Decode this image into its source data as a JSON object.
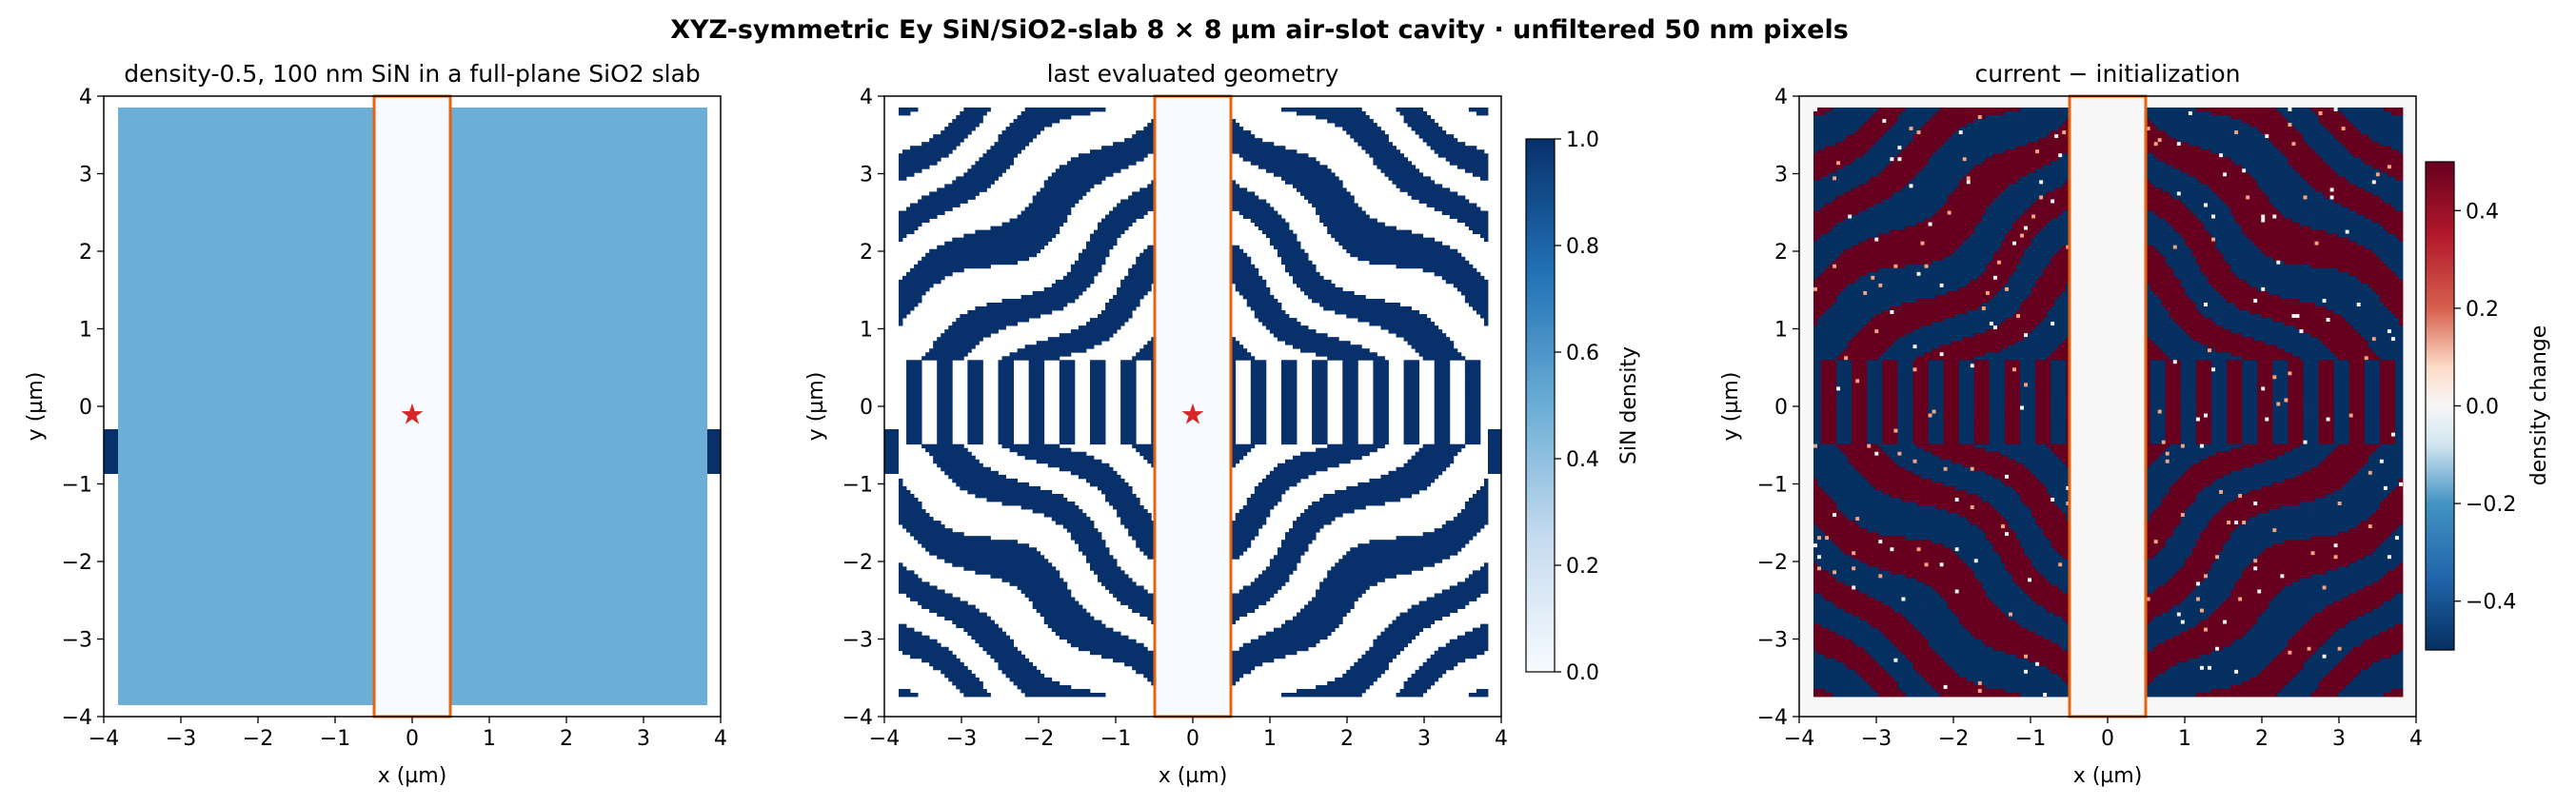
{
  "suptitle": "XYZ-symmetric Ey SiN/SiO2-slab 8 × 8 µm air-slot cavity · unfiltered 50 nm pixels",
  "colors": {
    "sio2_fill": "#6baed6",
    "sin_full": "#08306b",
    "sin_empty": "#f7fbff",
    "slot_outline": "#e6640f",
    "source_star": "#d62728",
    "diff_pos": "#67001f",
    "diff_neg": "#053061",
    "diff_zero": "#f7f7f7"
  },
  "icons": {
    "source_marker": "star-icon"
  },
  "chart_data": [
    {
      "type": "heatmap",
      "title": "density-0.5, 100 nm SiN in a full-plane SiO2 slab",
      "xlabel": "x (µm)",
      "ylabel": "y (µm)",
      "xlim": [
        -4,
        4
      ],
      "ylim": [
        -4,
        4
      ],
      "xticks": [
        "−4",
        "−3",
        "−2",
        "−1",
        "0",
        "1",
        "2",
        "3",
        "4"
      ],
      "yticks": [
        "−4",
        "−3",
        "−2",
        "−1",
        "0",
        "1",
        "2",
        "3",
        "4"
      ],
      "design_region": {
        "x": [
          -3.85,
          3.85
        ],
        "y": [
          -3.85,
          3.85
        ],
        "density": 0.5
      },
      "air_slot": {
        "x": [
          -0.5,
          0.5
        ],
        "y": [
          -4,
          4
        ]
      },
      "access_waveguide": {
        "y": [
          -0.3,
          0.3
        ],
        "density": 1.0
      },
      "source": {
        "x": 0,
        "y": 0
      }
    },
    {
      "type": "heatmap",
      "title": "last evaluated geometry",
      "xlabel": "x (µm)",
      "ylabel": "y (µm)",
      "xlim": [
        -4,
        4
      ],
      "ylim": [
        -4,
        4
      ],
      "xticks": [
        "−4",
        "−3",
        "−2",
        "−1",
        "0",
        "1",
        "2",
        "3",
        "4"
      ],
      "yticks": [
        "−4",
        "−3",
        "−2",
        "−1",
        "0",
        "1",
        "2",
        "3",
        "4"
      ],
      "air_slot": {
        "x": [
          -0.5,
          0.5
        ],
        "y": [
          -4,
          4
        ]
      },
      "source": {
        "x": 0,
        "y": 0
      },
      "pixel_nm": 50,
      "colorbar": {
        "label": "SiN density",
        "range": [
          0.0,
          1.0
        ],
        "ticks": [
          "0.0",
          "0.2",
          "0.4",
          "0.6",
          "0.8",
          "1.0"
        ]
      }
    },
    {
      "type": "heatmap",
      "title": "current − initialization",
      "xlabel": "x (µm)",
      "ylabel": "y (µm)",
      "xlim": [
        -4,
        4
      ],
      "ylim": [
        -4,
        4
      ],
      "xticks": [
        "−4",
        "−3",
        "−2",
        "−1",
        "0",
        "1",
        "2",
        "3",
        "4"
      ],
      "yticks": [
        "−4",
        "−3",
        "−2",
        "−1",
        "0",
        "1",
        "2",
        "3",
        "4"
      ],
      "air_slot": {
        "x": [
          -0.5,
          0.5
        ],
        "y": [
          -4,
          4
        ]
      },
      "colorbar": {
        "label": "density change",
        "range": [
          -0.5,
          0.5
        ],
        "ticks": [
          "−0.4",
          "−0.2",
          "0.0",
          "0.2",
          "0.4"
        ]
      }
    }
  ]
}
